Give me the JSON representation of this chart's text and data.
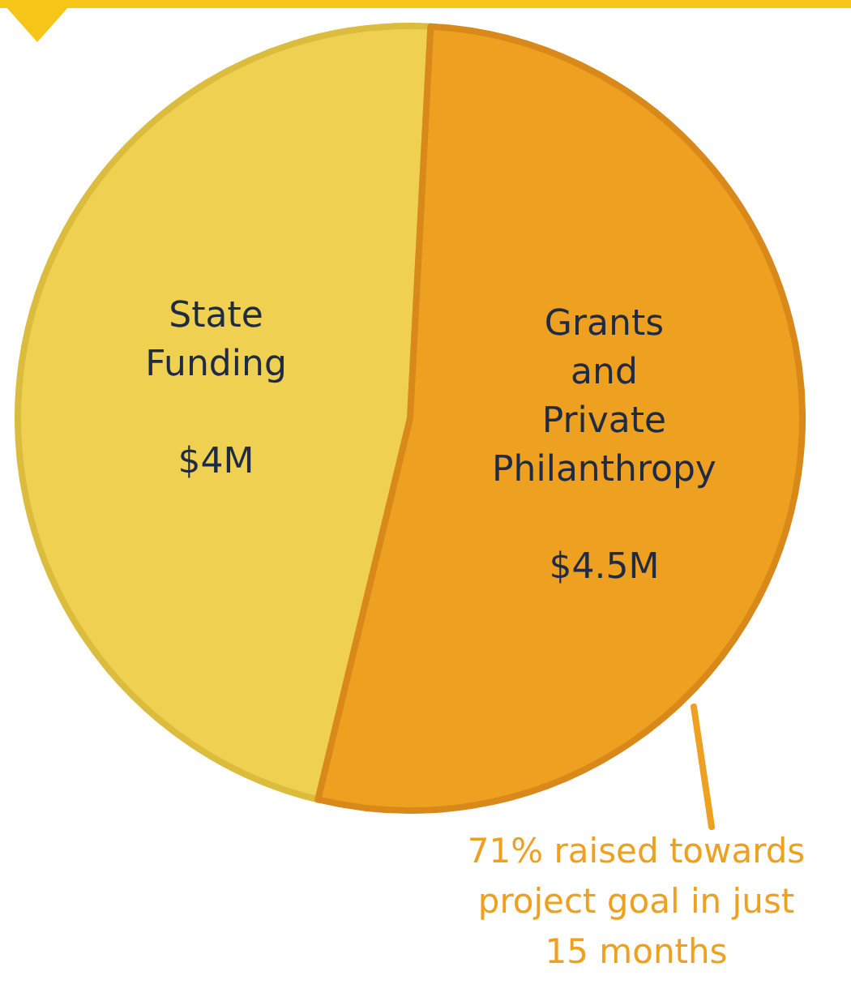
{
  "chart_data": {
    "type": "pie",
    "categories": [
      "State Funding",
      "Grants and Private Philanthropy"
    ],
    "values": [
      4,
      4.5
    ],
    "colors": [
      "#f0d050",
      "#eea020"
    ],
    "value_labels": [
      "$4M",
      "$4.5M"
    ],
    "annotations": [
      "71% raised towards project goal in just 15 months"
    ]
  }
}
